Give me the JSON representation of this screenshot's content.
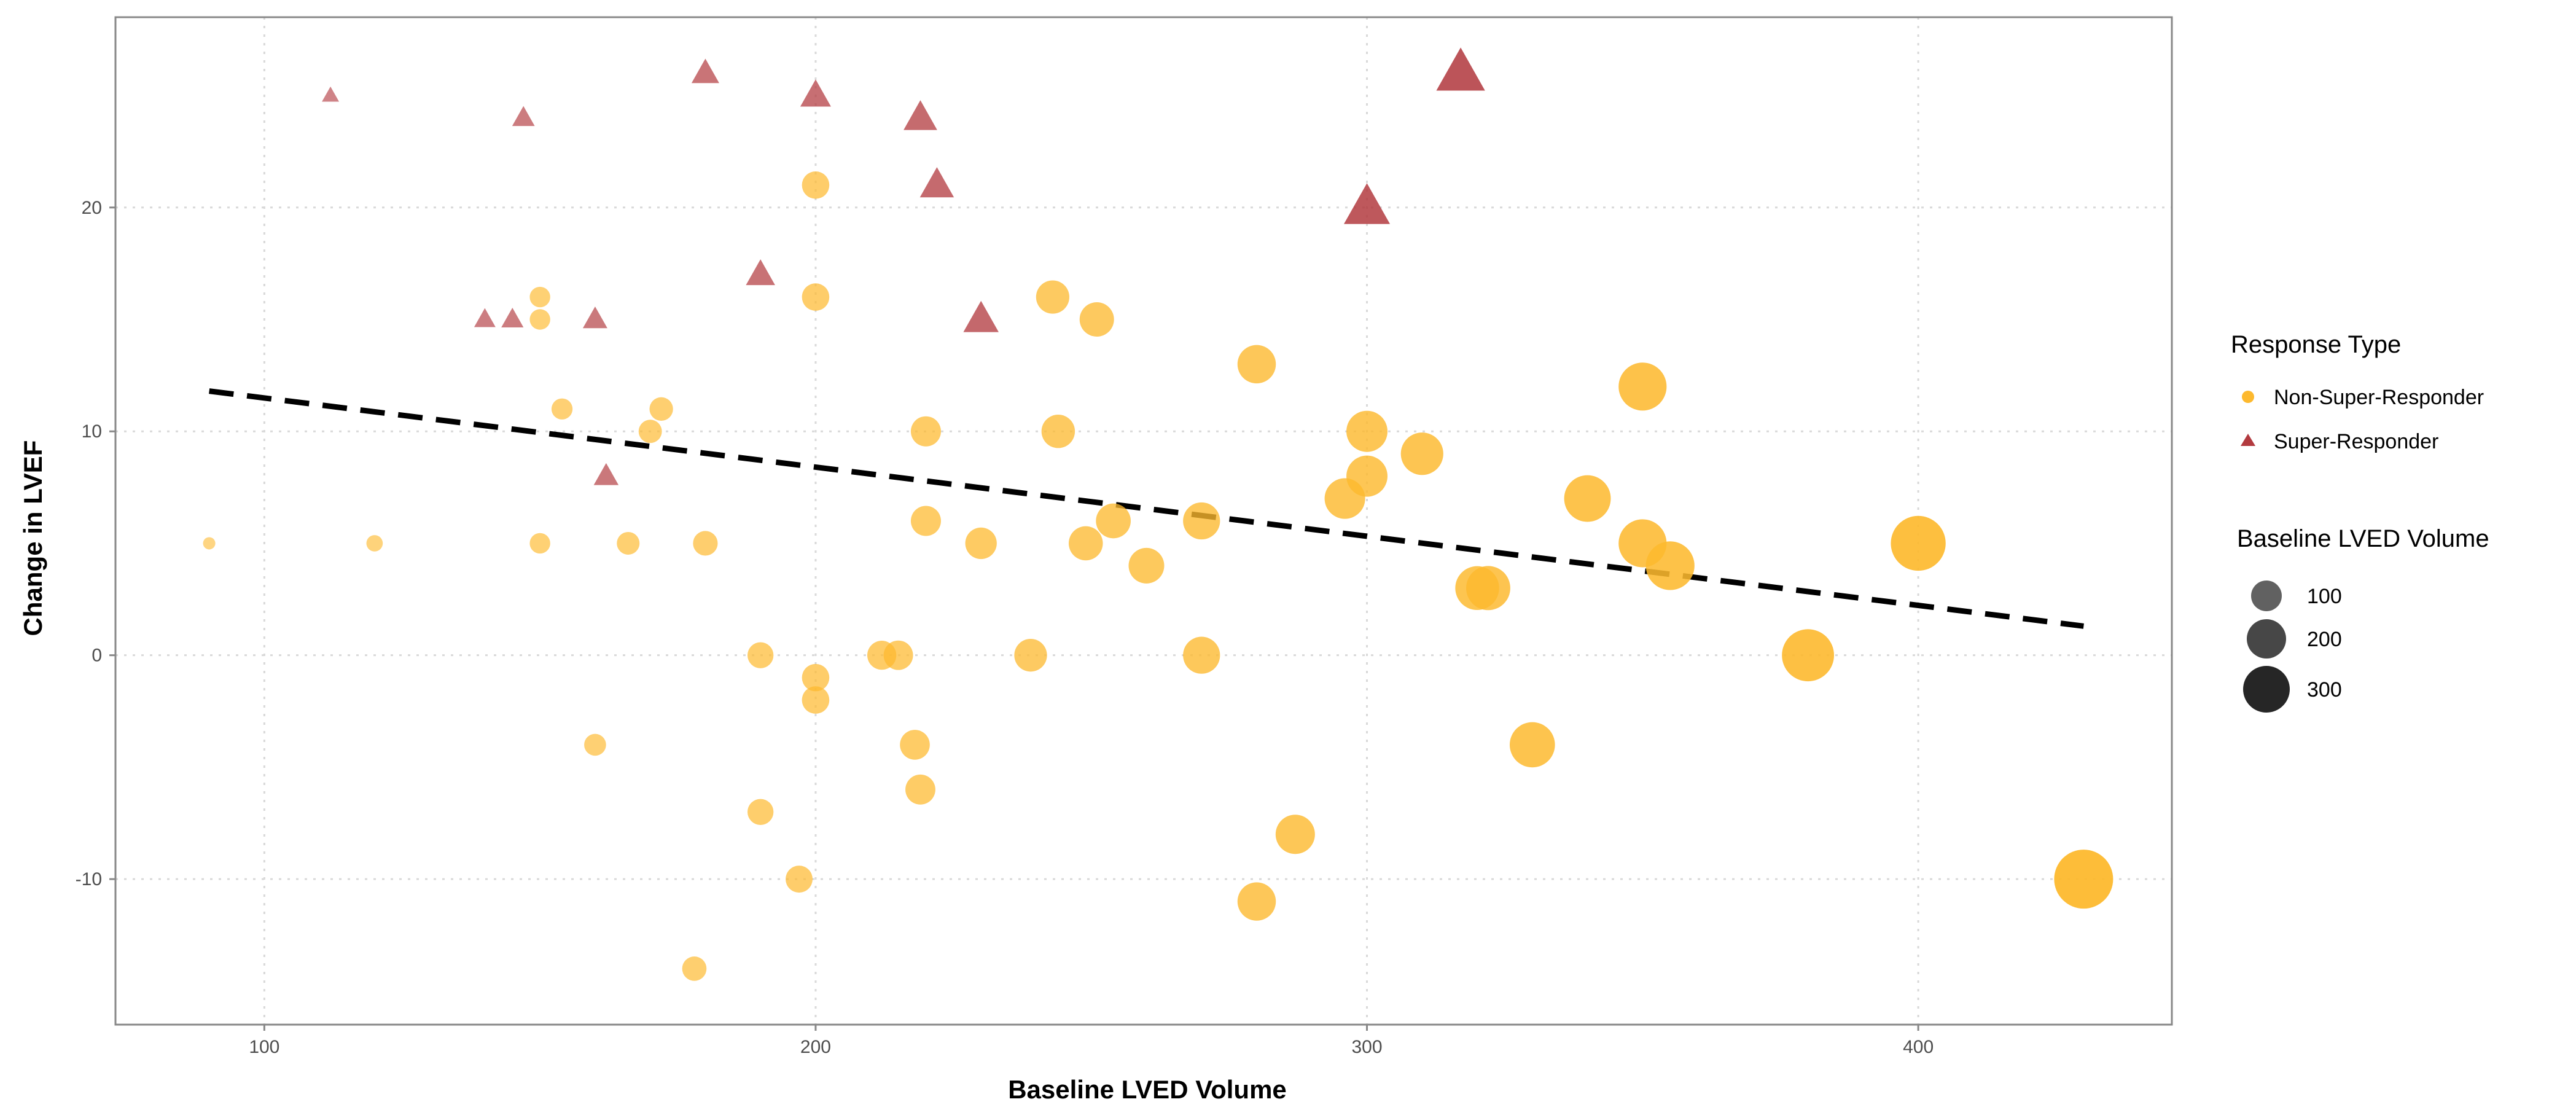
{
  "chart_data": {
    "type": "scatter",
    "xlabel": "Baseline LVED Volume",
    "ylabel": "Change in LVEF",
    "xlim": [
      73,
      446
    ],
    "ylim": [
      -16.5,
      28.5
    ],
    "xticks": [
      100,
      200,
      300,
      400
    ],
    "yticks": [
      -10,
      0,
      10,
      20
    ],
    "grid": true,
    "colors": {
      "non_super": "#FDB92E",
      "super": "#B23A3F",
      "trend": "#000000",
      "panel_border": "#888888",
      "grid": "#d9d9d9"
    },
    "trendline": {
      "x": [
        90,
        430
      ],
      "y": [
        11.8,
        1.3
      ],
      "style": "dashed"
    },
    "series": [
      {
        "name": "Non-Super-Responder",
        "shape": "circle",
        "points": [
          [
            90,
            5
          ],
          [
            120,
            5
          ],
          [
            150,
            5
          ],
          [
            150,
            16
          ],
          [
            150,
            15
          ],
          [
            154,
            11
          ],
          [
            166,
            5
          ],
          [
            170,
            10
          ],
          [
            172,
            11
          ],
          [
            180,
            5
          ],
          [
            160,
            -4
          ],
          [
            190,
            0
          ],
          [
            190,
            -7
          ],
          [
            178,
            -14
          ],
          [
            197,
            -10
          ],
          [
            200,
            21
          ],
          [
            200,
            16
          ],
          [
            200,
            -1
          ],
          [
            200,
            -2
          ],
          [
            212,
            0
          ],
          [
            215,
            0
          ],
          [
            218,
            -4
          ],
          [
            219,
            -6
          ],
          [
            220,
            10
          ],
          [
            220,
            6
          ],
          [
            230,
            5
          ],
          [
            239,
            0
          ],
          [
            243,
            16
          ],
          [
            244,
            10
          ],
          [
            249,
            5
          ],
          [
            251,
            15
          ],
          [
            254,
            6
          ],
          [
            260,
            4
          ],
          [
            270,
            6
          ],
          [
            270,
            0
          ],
          [
            280,
            13
          ],
          [
            280,
            -11
          ],
          [
            287,
            -8
          ],
          [
            296,
            7
          ],
          [
            300,
            10
          ],
          [
            300,
            8
          ],
          [
            310,
            9
          ],
          [
            320,
            3
          ],
          [
            322,
            3
          ],
          [
            330,
            -4
          ],
          [
            340,
            7
          ],
          [
            350,
            12
          ],
          [
            350,
            5
          ],
          [
            355,
            4
          ],
          [
            380,
            0
          ],
          [
            400,
            5
          ],
          [
            430,
            -10
          ]
        ]
      },
      {
        "name": "Super-Responder",
        "shape": "triangle",
        "points": [
          [
            112,
            25
          ],
          [
            140,
            15
          ],
          [
            145,
            15
          ],
          [
            147,
            24
          ],
          [
            160,
            15
          ],
          [
            162,
            8
          ],
          [
            180,
            26
          ],
          [
            190,
            17
          ],
          [
            200,
            25
          ],
          [
            219,
            24
          ],
          [
            222,
            21
          ],
          [
            230,
            15
          ],
          [
            300,
            20
          ],
          [
            317,
            26
          ]
        ]
      }
    ],
    "legend": {
      "position": "right",
      "color_title": "Response Type",
      "color_items": [
        "Non-Super-Responder",
        "Super-Responder"
      ],
      "size_title": "Baseline LVED Volume",
      "size_items": [
        100,
        200,
        300
      ]
    }
  }
}
